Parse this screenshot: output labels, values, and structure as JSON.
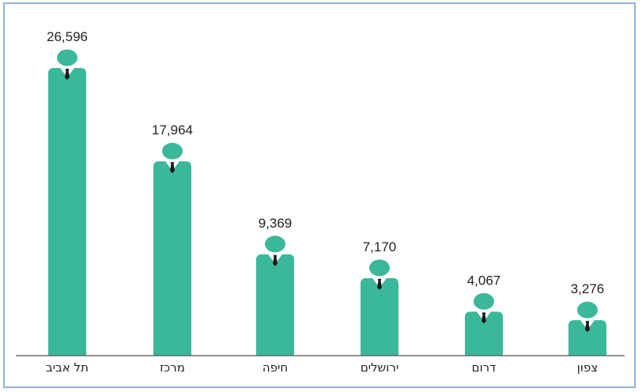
{
  "chart_data": {
    "type": "bar",
    "categories": [
      "תל אביב",
      "מרכז",
      "חיפה",
      "ירושלים",
      "דרום",
      "צפון"
    ],
    "values": [
      26596,
      17964,
      9369,
      7170,
      4067,
      3276
    ],
    "value_labels": [
      "26,596",
      "17,964",
      "9,369",
      "7,170",
      "4,067",
      "3,276"
    ],
    "title": "",
    "xlabel": "",
    "ylabel": "",
    "ylim": [
      0,
      30000
    ],
    "grid": false,
    "legend": "none",
    "bar_style": "person-icon",
    "colors": {
      "bar": "#3bb89a",
      "head": "#3bb89a",
      "tie": "#1a1a1a",
      "collar": "#ffffff",
      "axis": "#555555"
    }
  }
}
